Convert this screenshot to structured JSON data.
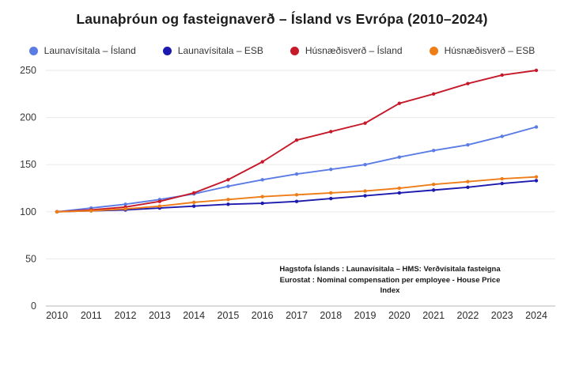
{
  "chart_data": {
    "type": "line",
    "title": "Launaþróun og fasteignaverð – Ísland vs Evrópa (2010–2024)",
    "x": [
      2010,
      2011,
      2012,
      2013,
      2014,
      2015,
      2016,
      2017,
      2018,
      2019,
      2020,
      2021,
      2022,
      2023,
      2024
    ],
    "series": [
      {
        "name": "Launavísitala – Ísland",
        "color": "#5b7ce4",
        "values": [
          100,
          104,
          108,
          113,
          119,
          127,
          134,
          140,
          145,
          150,
          158,
          165,
          171,
          180,
          190
        ]
      },
      {
        "name": "Launavísitala – ESB",
        "color": "#1c1aae",
        "values": [
          100,
          101,
          102,
          104,
          106,
          108,
          109,
          111,
          114,
          117,
          120,
          123,
          126,
          130,
          133
        ]
      },
      {
        "name": "Húsnæðisverð – Ísland",
        "color": "#c61a2b",
        "values": [
          100,
          102,
          105,
          111,
          120,
          134,
          153,
          176,
          185,
          194,
          215,
          225,
          236,
          245,
          250
        ]
      },
      {
        "name": "Húsnæðisverð – ESB",
        "color": "#ee7d18",
        "values": [
          100,
          101,
          103,
          106,
          110,
          113,
          116,
          118,
          120,
          122,
          125,
          129,
          132,
          135,
          137
        ]
      }
    ],
    "ylim": [
      0,
      250
    ],
    "yticks": [
      0,
      50,
      100,
      150,
      200,
      250
    ],
    "grid": true,
    "legend_position": "top",
    "source_note_line1": "Hagstofa Íslands : Launavísitala – HMS: Verðvísitala fasteigna",
    "source_note_line2": "Eurostat : Nominal compensation per employee - House Price Index",
    "colors": {
      "grid": "#efeceb",
      "axis": "#cfcfcf",
      "tick_label": "#3a3a3a",
      "title_text": "#1c1c1c"
    }
  }
}
